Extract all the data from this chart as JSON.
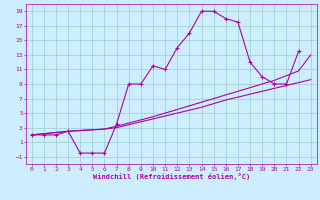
{
  "xlabel": "Windchill (Refroidissement éolien,°C)",
  "xlim": [
    -0.5,
    23.5
  ],
  "ylim": [
    -2,
    20
  ],
  "xticks": [
    0,
    1,
    2,
    3,
    4,
    5,
    6,
    7,
    8,
    9,
    10,
    11,
    12,
    13,
    14,
    15,
    16,
    17,
    18,
    19,
    20,
    21,
    22,
    23
  ],
  "yticks": [
    -1,
    1,
    3,
    5,
    7,
    9,
    11,
    13,
    15,
    17,
    19
  ],
  "bg_color": "#cceeff",
  "line_color": "#aa00aa",
  "grid_color": "#99cccc",
  "line1_x": [
    0,
    1,
    2,
    3,
    4,
    5,
    6,
    7,
    8,
    9,
    10,
    11,
    12,
    13,
    14,
    15,
    16,
    17,
    18,
    19,
    20,
    21,
    22
  ],
  "line1_y": [
    2,
    2,
    2,
    2.5,
    -0.5,
    -0.5,
    -0.5,
    3.5,
    9,
    9,
    11.5,
    11,
    14,
    16,
    19,
    19,
    18,
    17.5,
    12,
    10,
    9,
    9,
    13.5
  ],
  "line2_x": [
    0,
    3,
    6,
    7,
    10,
    12,
    14,
    16,
    17,
    18,
    19,
    20,
    22,
    23
  ],
  "line2_y": [
    2,
    2.5,
    2.8,
    3.0,
    4.2,
    5.0,
    5.8,
    6.8,
    7.2,
    7.6,
    8.0,
    8.4,
    9.2,
    9.6
  ],
  "line3_x": [
    0,
    3,
    6,
    7,
    10,
    12,
    14,
    17,
    18,
    19,
    20,
    22,
    23
  ],
  "line3_y": [
    2,
    2.5,
    2.8,
    3.2,
    4.5,
    5.5,
    6.5,
    8.0,
    8.5,
    9.0,
    9.5,
    10.8,
    13.0
  ]
}
